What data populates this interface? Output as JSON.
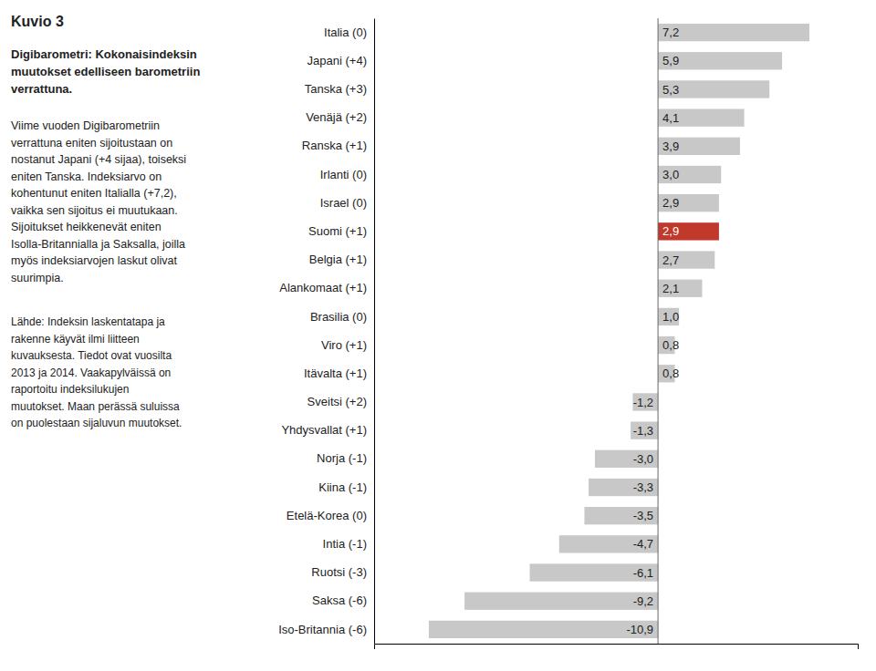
{
  "chart_data": {
    "type": "bar",
    "orientation": "horizontal",
    "title": "Kuvio 3",
    "subtitle": "Digibarometri: Kokonaisindeksin\nmuutokset edelliseen barometriin\nverrattuna.",
    "annotations": [
      "Viime vuoden Digibarometriin\nverrattuna eniten sijoitustaan on\nnostanut Japani (+4 sijaa), toiseksi\neniten Tanska. Indeksiarvo on\nkohentunut eniten Italialla (+7,2),\nvaikka sen sijoitus ei muutukaan.\nSijoitukset heikkenevät eniten\nIsolla-Britannialla ja Saksalla, joilla\nmyös indeksiarvojen laskut olivat\nsuurimpia.",
      "Lähde: Indeksin laskentatapa ja\nrakenne käyvät ilmi liitteen\nkuvauksesta. Tiedot ovat vuosilta\n2013 ja 2014. Vaakapylväissä on\nraportoitu indeksilukujen\nmuutokset. Maan perässä suluissa\non puolestaan sijaluvun muutokset."
    ],
    "categories": [
      "Italia (0)",
      "Japani (+4)",
      "Tanska (+3)",
      "Venäjä (+2)",
      "Ranska (+1)",
      "Irlanti (0)",
      "Israel (0)",
      "Suomi (+1)",
      "Belgia (+1)",
      "Alankomaat (+1)",
      "Brasilia (0)",
      "Viro (+1)",
      "Itävalta (+1)",
      "Sveitsi (+2)",
      "Yhdysvallat (+1)",
      "Norja (-1)",
      "Kiina (-1)",
      "Etelä-Korea (0)",
      "Intia (-1)",
      "Ruotsi (-3)",
      "Saksa (-6)",
      "Iso-Britannia (-6)"
    ],
    "values": [
      7.2,
      5.9,
      5.3,
      4.1,
      3.9,
      3.0,
      2.9,
      2.9,
      2.7,
      2.1,
      1.0,
      0.8,
      0.8,
      -1.2,
      -1.3,
      -3.0,
      -3.3,
      -3.5,
      -4.7,
      -6.1,
      -9.2,
      -10.9
    ],
    "value_labels": [
      "7,2",
      "5,9",
      "5,3",
      "4,1",
      "3,9",
      "3,0",
      "2,9",
      "2,9",
      "2,7",
      "2,1",
      "1,0",
      "0,8",
      "0,8",
      "-1,2",
      "-1,3",
      "-3,0",
      "-3,3",
      "-3,5",
      "-4,7",
      "-6,1",
      "-9,2",
      "-10,9"
    ],
    "colors": [
      "#c8c8c8",
      "#c8c8c8",
      "#c8c8c8",
      "#c8c8c8",
      "#c8c8c8",
      "#c8c8c8",
      "#c8c8c8",
      "#c0392b",
      "#c8c8c8",
      "#c8c8c8",
      "#c8c8c8",
      "#c8c8c8",
      "#c8c8c8",
      "#c8c8c8",
      "#c8c8c8",
      "#c8c8c8",
      "#c8c8c8",
      "#c8c8c8",
      "#c8c8c8",
      "#c8c8c8",
      "#c8c8c8",
      "#c8c8c8"
    ],
    "xlim": [
      -13.5,
      9.5
    ],
    "xticks": [],
    "tick_labels": "y",
    "data_labels": true,
    "grid": false
  }
}
